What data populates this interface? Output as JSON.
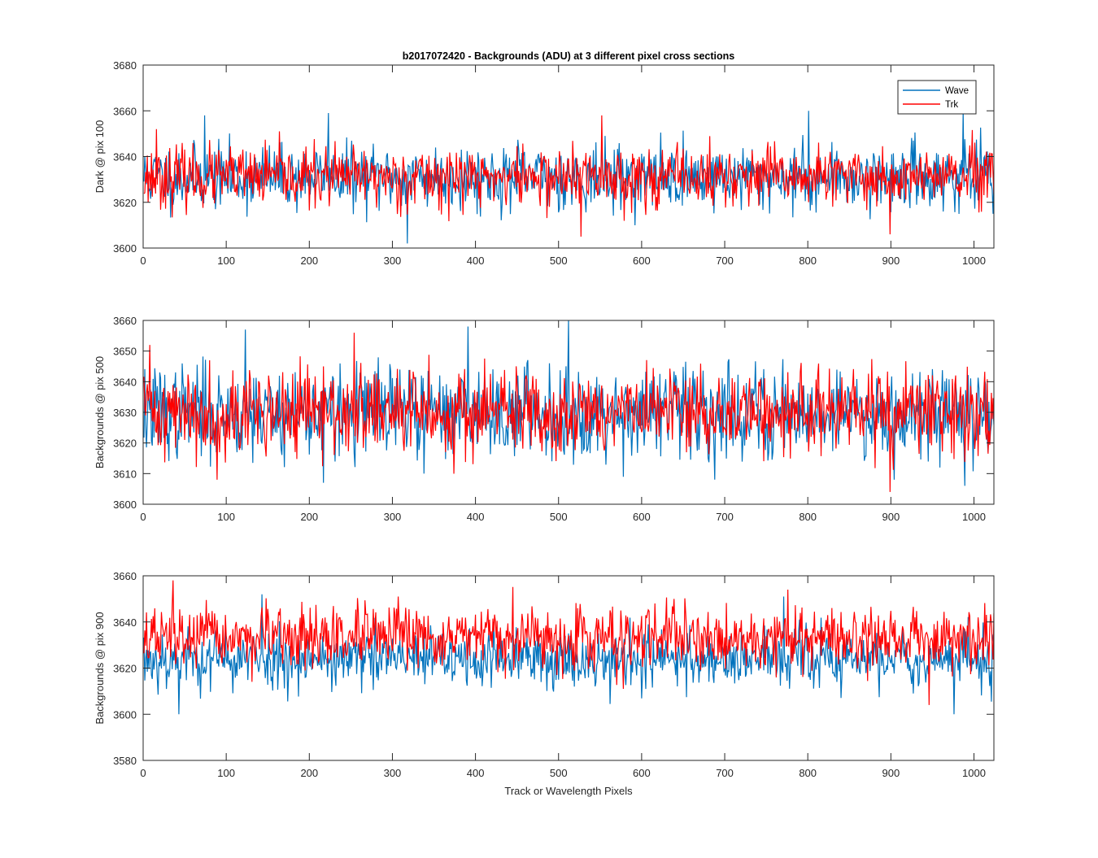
{
  "figure": {
    "title": "b2017072420 - Backgrounds (ADU) at 3 different pixel cross sections",
    "xlabel": "Track or Wavelength Pixels"
  },
  "chart_data": [
    {
      "type": "line",
      "title": "b2017072420 - Backgrounds (ADU) at 3 different pixel cross sections",
      "xlabel": "",
      "ylabel": "Dark @ pix 100",
      "xlim": [
        0,
        1024
      ],
      "ylim": [
        3600,
        3680
      ],
      "xticks": [
        0,
        100,
        200,
        300,
        400,
        500,
        600,
        700,
        800,
        900,
        1000
      ],
      "yticks": [
        3600,
        3620,
        3640,
        3660,
        3680
      ],
      "legend": [
        "Wave",
        "Trk"
      ],
      "legend_position": "top-right",
      "series": [
        {
          "name": "Wave",
          "color": "#0072BD",
          "mean": 3631,
          "std": 7.0,
          "min": 3602,
          "max": 3660,
          "seed": 11,
          "peaks": [
            [
              73,
              3658
            ],
            [
              222,
              3659
            ],
            [
              317,
              3602
            ],
            [
              800,
              3660
            ],
            [
              986,
              3660
            ],
            [
              1022,
              3615
            ]
          ]
        },
        {
          "name": "Trk",
          "color": "#FF0000",
          "mean": 3631,
          "std": 6.5,
          "min": 3605,
          "max": 3658,
          "seed": 23,
          "peaks": [
            [
              15,
              3652
            ],
            [
              551,
              3658
            ],
            [
              526,
              3605
            ],
            [
              898,
              3606
            ]
          ]
        }
      ]
    },
    {
      "type": "line",
      "title": "",
      "xlabel": "",
      "ylabel": "Backgrounds @ pix 500",
      "xlim": [
        0,
        1024
      ],
      "ylim": [
        3600,
        3660
      ],
      "xticks": [
        0,
        100,
        200,
        300,
        400,
        500,
        600,
        700,
        800,
        900,
        1000
      ],
      "yticks": [
        3600,
        3610,
        3620,
        3630,
        3640,
        3650,
        3660
      ],
      "series": [
        {
          "name": "Wave",
          "color": "#0072BD",
          "mean": 3630,
          "std": 7.5,
          "min": 3606,
          "max": 3660,
          "seed": 37,
          "peaks": [
            [
              122,
              3657
            ],
            [
              216,
              3607
            ],
            [
              390,
              3658
            ],
            [
              511,
              3660
            ],
            [
              337,
              3610
            ],
            [
              988,
              3606
            ]
          ]
        },
        {
          "name": "Trk",
          "color": "#FF0000",
          "mean": 3630,
          "std": 7.0,
          "min": 3604,
          "max": 3656,
          "seed": 41,
          "peaks": [
            [
              7,
              3652
            ],
            [
              88,
              3608
            ],
            [
              253,
              3656
            ],
            [
              898,
              3604
            ]
          ]
        }
      ]
    },
    {
      "type": "line",
      "title": "",
      "xlabel": "Track or Wavelength Pixels",
      "ylabel": "Backgrounds @ pix 900",
      "xlim": [
        0,
        1024
      ],
      "ylim": [
        3580,
        3660
      ],
      "xticks": [
        0,
        100,
        200,
        300,
        400,
        500,
        600,
        700,
        800,
        900,
        1000
      ],
      "yticks": [
        3580,
        3600,
        3620,
        3640,
        3660
      ],
      "series": [
        {
          "name": "Wave",
          "color": "#0072BD",
          "mean": 3624,
          "std": 6.5,
          "min": 3600,
          "max": 3652,
          "seed": 53,
          "peaks": [
            [
              42,
              3600
            ],
            [
              142,
              3652
            ],
            [
              975,
              3600
            ],
            [
              770,
              3651
            ]
          ]
        },
        {
          "name": "Trk",
          "color": "#FF0000",
          "mean": 3633,
          "std": 6.5,
          "min": 3604,
          "max": 3658,
          "seed": 67,
          "peaks": [
            [
              35,
              3658
            ],
            [
              775,
              3654
            ],
            [
              945,
              3604
            ]
          ]
        }
      ]
    }
  ]
}
